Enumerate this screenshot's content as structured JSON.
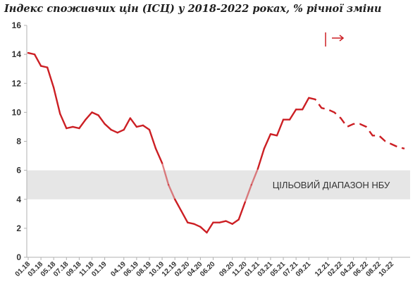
{
  "chart_data": {
    "type": "line",
    "title": "Індекс споживчих цін (ІСЦ) у 2018-2022 роках, % річної зміни",
    "ylim": [
      0,
      16
    ],
    "yticks": [
      "0",
      "2",
      "4",
      "6",
      "8",
      "10",
      "12",
      "14",
      "16"
    ],
    "x_tick_labels": [
      "01.18",
      "03.18",
      "05.18",
      "07.18",
      "09.18",
      "11.18",
      "01.19",
      "04.19",
      "06.19",
      "08.19",
      "10.19",
      "12.19",
      "02.20",
      "04.20",
      "06.20",
      "09.20",
      "11.20",
      "01.21",
      "03.21",
      "05.21",
      "07.21",
      "09.21",
      "12.21",
      "02.22",
      "04.22",
      "06.22",
      "08.22",
      "10.22"
    ],
    "target_band": {
      "from": 4,
      "to": 6,
      "label": "ЦІЛЬОВИЙ ДІАПАЗОН НБУ"
    },
    "forecast_marker": "|  →",
    "grid": false,
    "actual": {
      "x": [
        "01.18",
        "02.18",
        "03.18",
        "04.18",
        "05.18",
        "06.18",
        "07.18",
        "08.18",
        "09.18",
        "10.18",
        "11.18",
        "12.18",
        "01.19",
        "02.19",
        "03.19",
        "04.19",
        "05.19",
        "06.19",
        "07.19",
        "08.19",
        "09.19",
        "10.19",
        "11.19",
        "12.19",
        "01.20",
        "02.20",
        "03.20",
        "04.20",
        "05.20",
        "06.20",
        "07.20",
        "08.20",
        "09.20",
        "10.20",
        "11.20",
        "12.20",
        "01.21",
        "02.21",
        "03.21",
        "04.21",
        "05.21",
        "06.21",
        "07.21",
        "08.21",
        "09.21"
      ],
      "y": [
        14.1,
        14.0,
        13.2,
        13.1,
        11.7,
        9.9,
        8.9,
        9.0,
        8.9,
        9.5,
        10.0,
        9.8,
        9.2,
        8.8,
        8.6,
        8.8,
        9.6,
        9.0,
        9.1,
        8.8,
        7.5,
        6.5,
        5.0,
        4.0,
        3.2,
        2.4,
        2.3,
        2.1,
        1.7,
        2.4,
        2.4,
        2.5,
        2.3,
        2.6,
        3.8,
        5.0,
        6.1,
        7.5,
        8.5,
        8.4,
        9.5,
        9.5,
        10.2,
        10.2,
        11.0
      ]
    },
    "forecast": {
      "x": [
        "09.21",
        "10.21",
        "11.21",
        "12.21",
        "01.22",
        "02.22",
        "03.22",
        "04.22",
        "05.22",
        "06.22",
        "07.22",
        "08.22",
        "09.22",
        "10.22",
        "11.22",
        "12.22"
      ],
      "y": [
        11.0,
        10.9,
        10.3,
        10.2,
        10.0,
        9.6,
        9.0,
        9.2,
        9.2,
        9.0,
        8.4,
        8.4,
        8.0,
        7.8,
        7.6,
        7.5
      ]
    },
    "colors": {
      "line": "#cc1f24",
      "band": "#e6e6e6",
      "axis": "#b0b0b0"
    }
  }
}
